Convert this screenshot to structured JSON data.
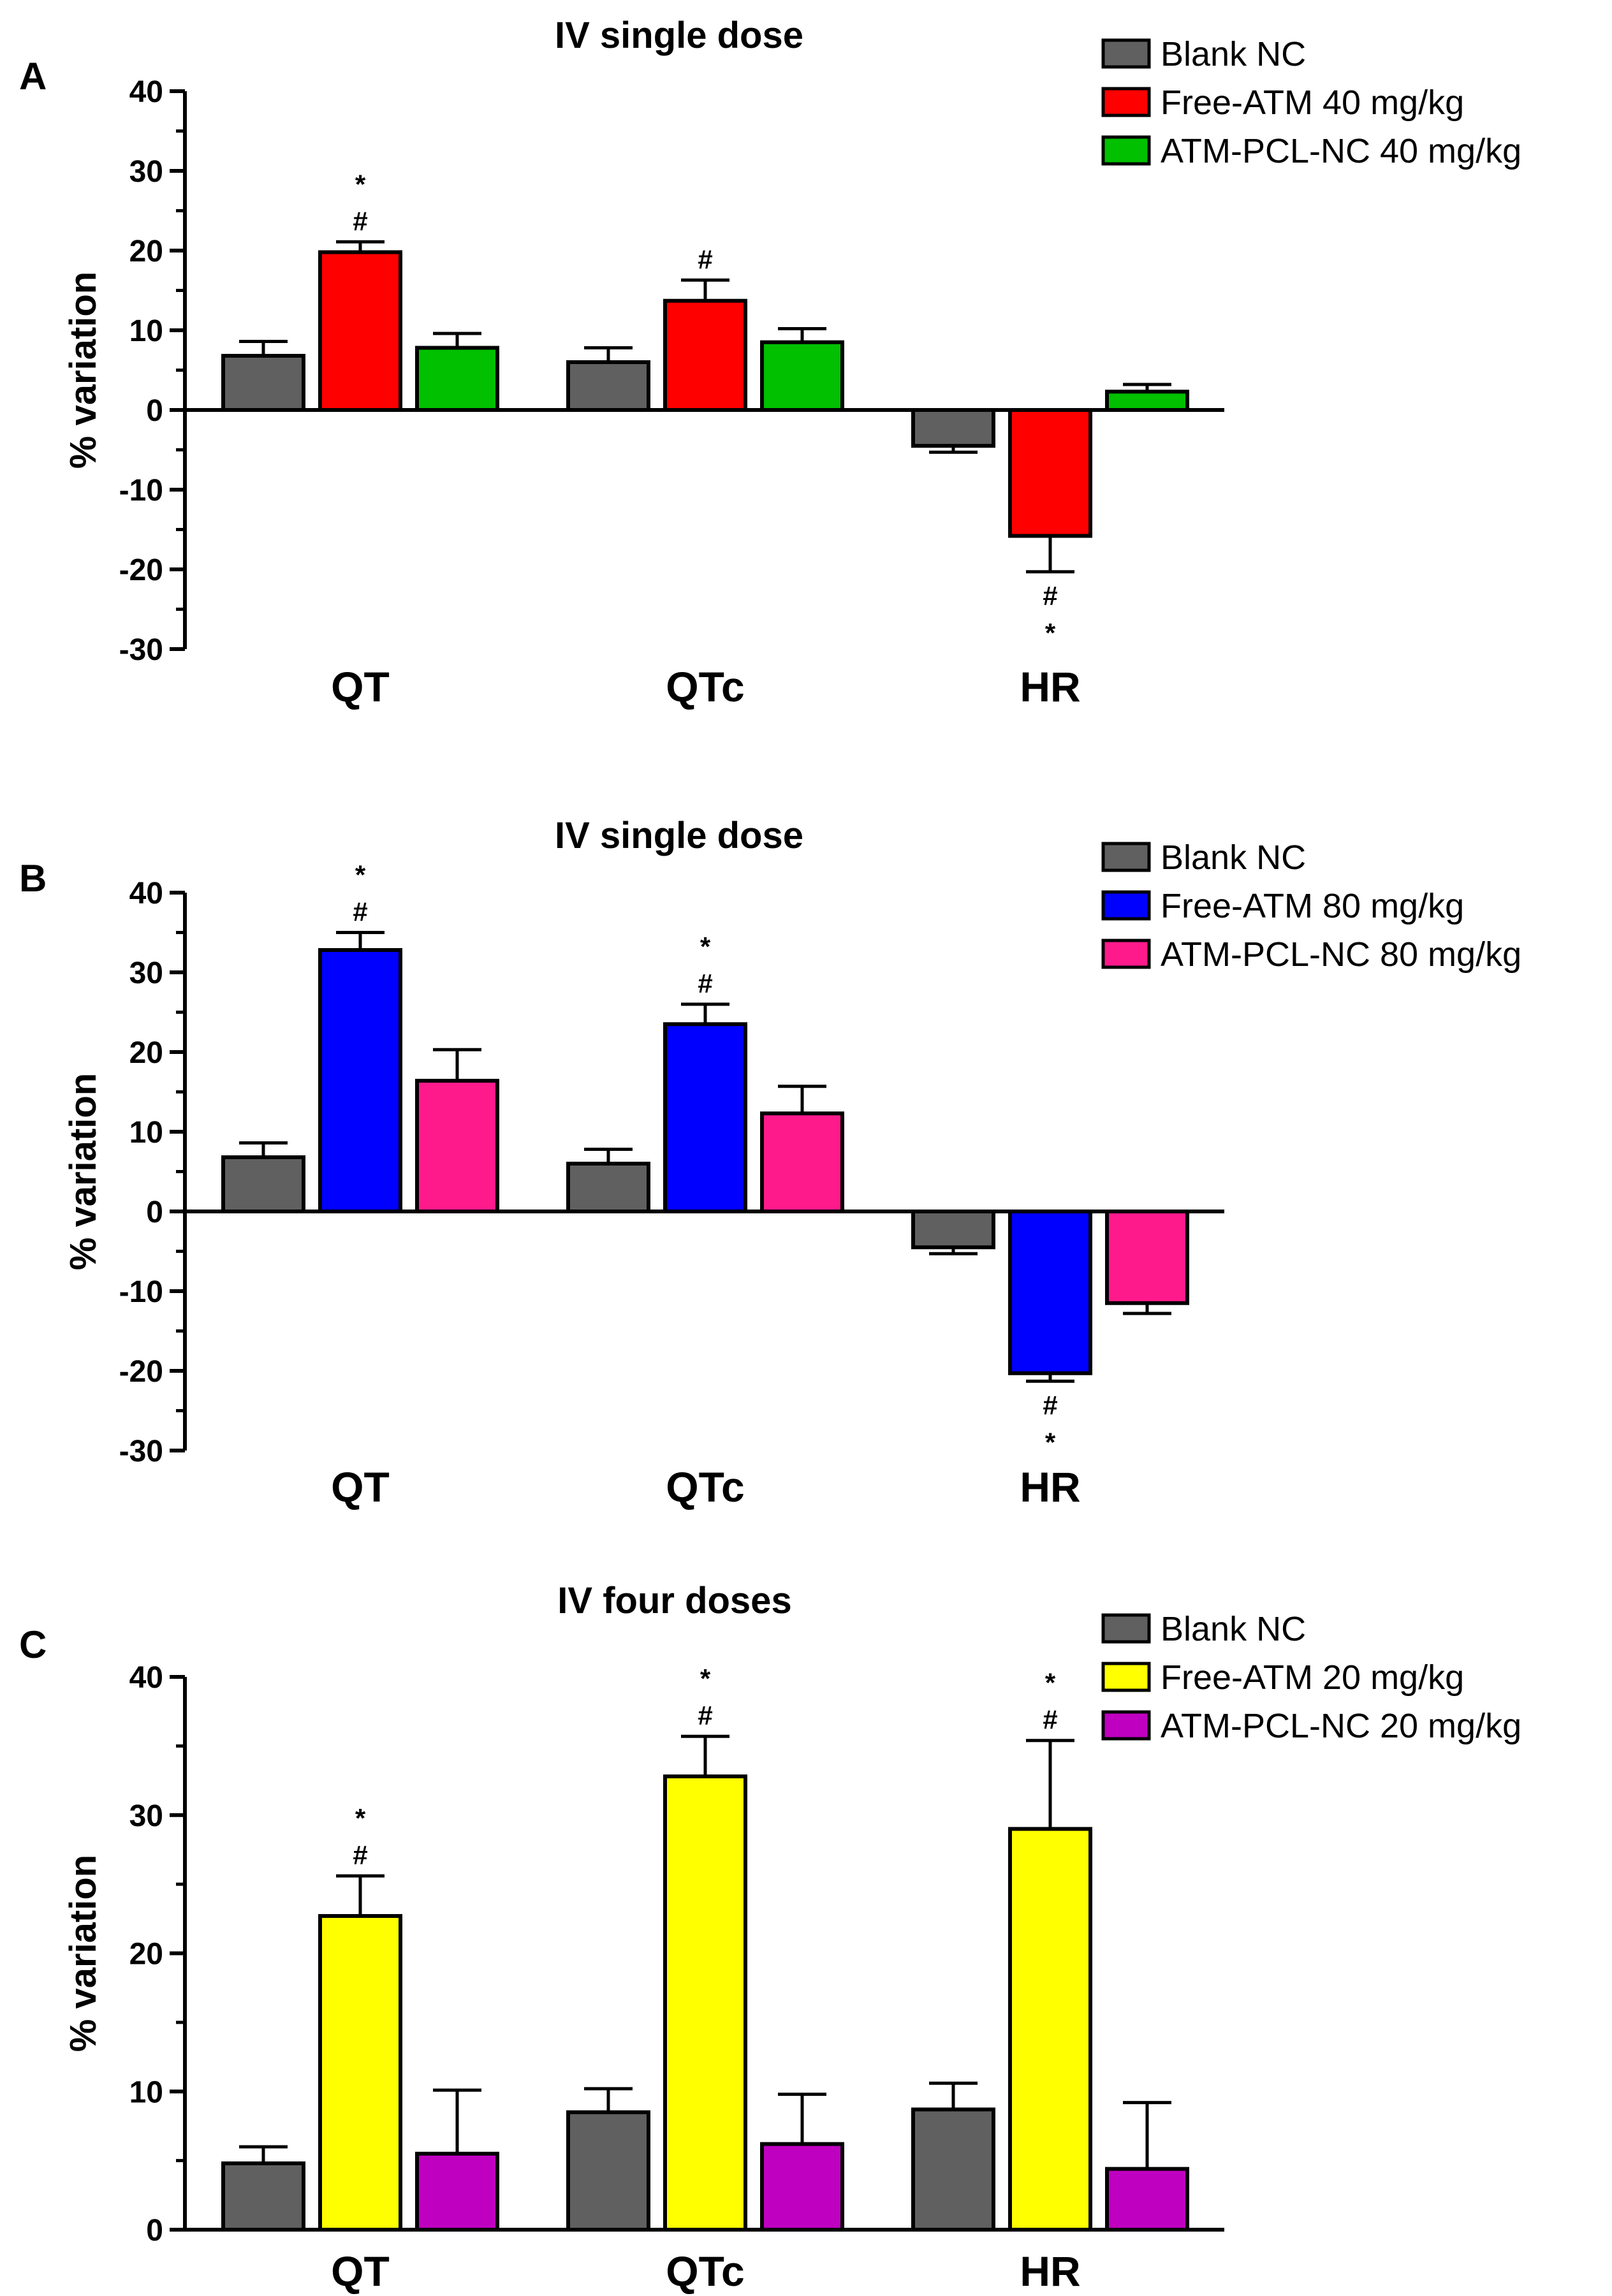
{
  "chart_data": [
    {
      "type": "bar",
      "panel": "A",
      "title": "IV single dose",
      "xlabel": "",
      "ylabel": "% variation",
      "ylim": [
        -30,
        40
      ],
      "yticks": [
        "-30",
        "-20",
        "-10",
        "0",
        "10",
        "20",
        "30",
        "40"
      ],
      "categories": [
        "QT",
        "QTc",
        "HR"
      ],
      "series": [
        {
          "name": "Blank NC",
          "color": "#606060",
          "values": [
            6.8,
            6.0,
            -4.5
          ],
          "errors": [
            1.8,
            1.8,
            0.8
          ]
        },
        {
          "name": "Free-ATM 40 mg/kg",
          "color": "#ff0000",
          "values": [
            19.8,
            13.7,
            -15.8
          ],
          "errors": [
            1.3,
            2.6,
            4.5
          ]
        },
        {
          "name": "ATM-PCL-NC 40 mg/kg",
          "color": "#00c000",
          "values": [
            7.8,
            8.5,
            2.3
          ],
          "errors": [
            1.8,
            1.7,
            0.9
          ]
        }
      ],
      "annotations": [
        {
          "category": "QT",
          "series": 1,
          "lines": [
            "*",
            "#"
          ],
          "position": "above"
        },
        {
          "category": "QTc",
          "series": 1,
          "lines": [
            "#"
          ],
          "position": "above"
        },
        {
          "category": "HR",
          "series": 1,
          "lines": [
            "#",
            "*"
          ],
          "position": "below"
        }
      ],
      "legend": "top-right"
    },
    {
      "type": "bar",
      "panel": "B",
      "title": "IV single dose",
      "xlabel": "",
      "ylabel": "% variation",
      "ylim": [
        -30,
        40
      ],
      "yticks": [
        "-30",
        "-20",
        "-10",
        "0",
        "10",
        "20",
        "30",
        "40"
      ],
      "categories": [
        "QT",
        "QTc",
        "HR"
      ],
      "series": [
        {
          "name": "Blank NC",
          "color": "#606060",
          "values": [
            6.8,
            6.0,
            -4.5
          ],
          "errors": [
            1.8,
            1.8,
            0.8
          ]
        },
        {
          "name": "Free-ATM 80 mg/kg",
          "color": "#0000ff",
          "values": [
            32.8,
            23.5,
            -20.3
          ],
          "errors": [
            2.2,
            2.5,
            1.0
          ]
        },
        {
          "name": "ATM-PCL-NC 80 mg/kg",
          "color": "#ff1a8c",
          "values": [
            16.4,
            12.3,
            -11.5
          ],
          "errors": [
            3.9,
            3.4,
            1.3
          ]
        }
      ],
      "annotations": [
        {
          "category": "QT",
          "series": 1,
          "lines": [
            "*",
            "#"
          ],
          "position": "above"
        },
        {
          "category": "QTc",
          "series": 1,
          "lines": [
            "*",
            "#"
          ],
          "position": "above"
        },
        {
          "category": "HR",
          "series": 1,
          "lines": [
            "#",
            "*"
          ],
          "position": "below"
        }
      ],
      "legend": "top-right"
    },
    {
      "type": "bar",
      "panel": "C",
      "title": "IV four doses",
      "xlabel": "",
      "ylabel": "% variation",
      "ylim": [
        0,
        40
      ],
      "yticks": [
        "0",
        "10",
        "20",
        "30",
        "40"
      ],
      "categories": [
        "QT",
        "QTc",
        "HR"
      ],
      "series": [
        {
          "name": "Blank NC",
          "color": "#606060",
          "values": [
            4.8,
            8.5,
            8.7
          ],
          "errors": [
            1.2,
            1.7,
            1.9
          ]
        },
        {
          "name": "Free-ATM 20 mg/kg",
          "color": "#ffff00",
          "values": [
            22.7,
            32.8,
            29.0
          ],
          "errors": [
            2.9,
            2.9,
            6.4
          ]
        },
        {
          "name": "ATM-PCL-NC 20 mg/kg",
          "color": "#c000c0",
          "values": [
            5.5,
            6.2,
            4.4
          ],
          "errors": [
            4.6,
            3.6,
            4.8
          ]
        }
      ],
      "annotations": [
        {
          "category": "QT",
          "series": 1,
          "lines": [
            "*",
            "#"
          ],
          "position": "above"
        },
        {
          "category": "QTc",
          "series": 1,
          "lines": [
            "*",
            "#"
          ],
          "position": "above"
        },
        {
          "category": "HR",
          "series": 1,
          "lines": [
            "*",
            "#"
          ],
          "position": "above"
        }
      ],
      "legend": "top-right"
    }
  ]
}
